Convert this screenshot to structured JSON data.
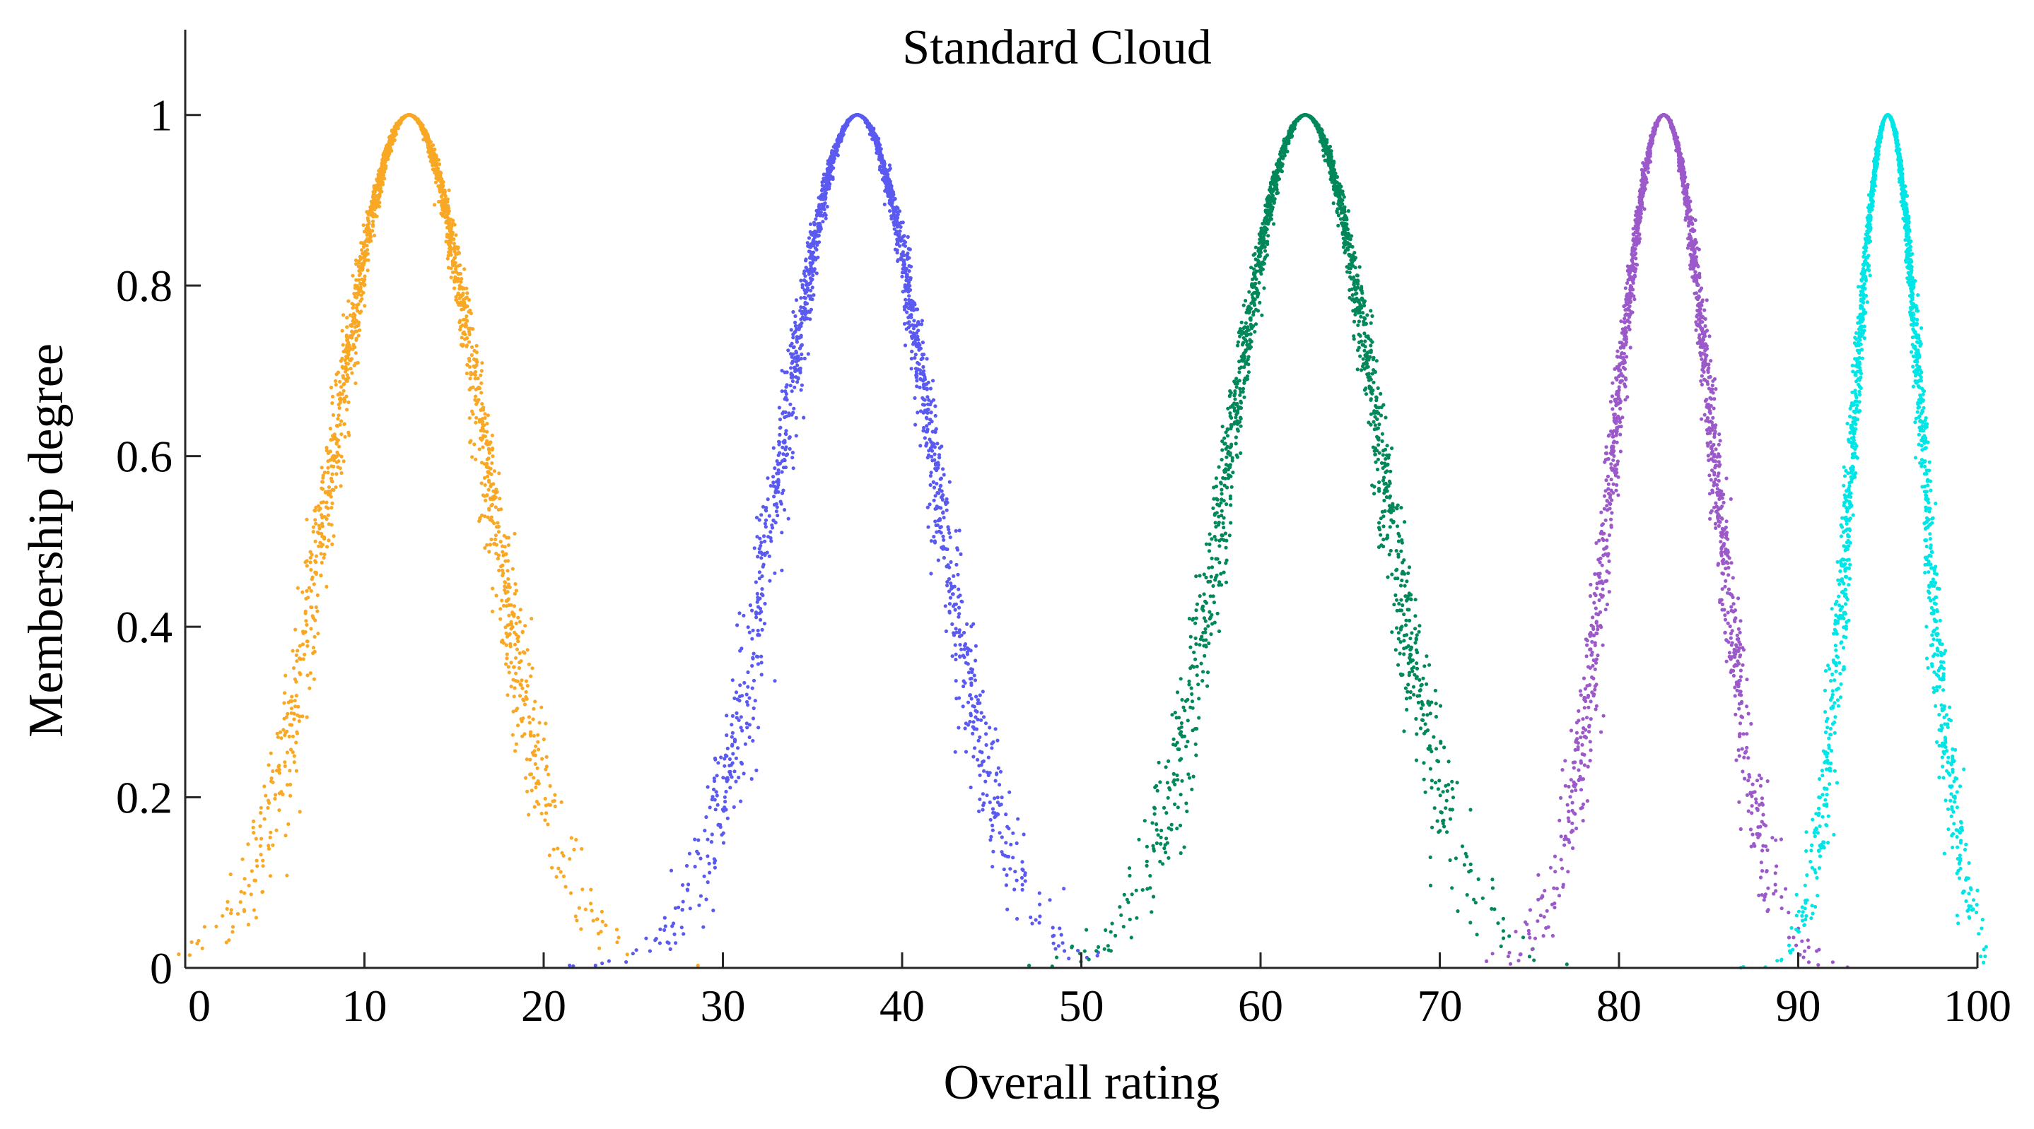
{
  "chart_data": {
    "type": "scatter",
    "title": "Standard Cloud",
    "xlabel": "Overall rating",
    "ylabel": "Membership degree",
    "xlim": [
      0,
      100
    ],
    "ylim": [
      0,
      1.1
    ],
    "xticks": [
      0,
      10,
      20,
      30,
      40,
      50,
      60,
      70,
      80,
      90,
      100
    ],
    "xtick_labels": [
      "0",
      "10",
      "20",
      "30",
      "40",
      "50",
      "60",
      "70",
      "80",
      "90",
      "100"
    ],
    "yticks": [
      0,
      0.2,
      0.4,
      0.6,
      0.8,
      1
    ],
    "ytick_labels": [
      "0",
      "0.2",
      "0.4",
      "0.6",
      "0.8",
      "1"
    ],
    "grid": false,
    "box": "left-bottom",
    "series": [
      {
        "color": "#F9A825",
        "Ex": 12.5,
        "En": 4.2,
        "He": 0.3,
        "points": 2000
      },
      {
        "color": "#5A5AF0",
        "Ex": 37.5,
        "En": 4.2,
        "He": 0.3,
        "points": 2000
      },
      {
        "color": "#00875A",
        "Ex": 62.5,
        "En": 4.2,
        "He": 0.3,
        "points": 2000
      },
      {
        "color": "#9B59C9",
        "Ex": 82.5,
        "En": 2.8,
        "He": 0.2,
        "points": 2000
      },
      {
        "color": "#00E5E5",
        "Ex": 95.0,
        "En": 2.0,
        "He": 0.15,
        "points": 2000
      }
    ]
  }
}
